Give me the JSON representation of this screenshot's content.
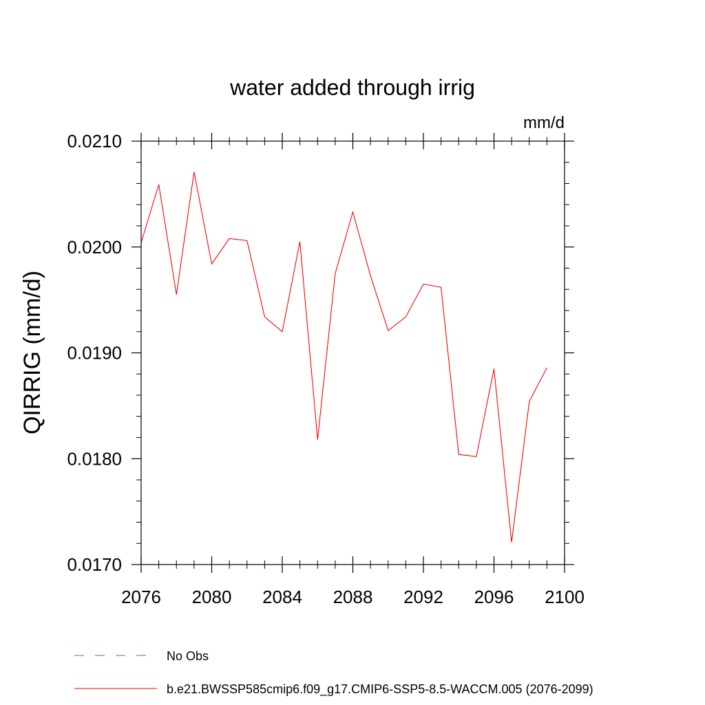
{
  "chart_data": {
    "type": "line",
    "title": "water added through irrig",
    "units": "mm/d",
    "ylabel": "QIRRIG  (mm/d)",
    "xlabel": "",
    "xlim": [
      2076,
      2100
    ],
    "ylim": [
      0.017,
      0.021
    ],
    "x_ticks": [
      2076,
      2080,
      2084,
      2088,
      2092,
      2096,
      2100
    ],
    "x_tick_labels": [
      "2076",
      "2080",
      "2084",
      "2088",
      "2092",
      "2096",
      "2100"
    ],
    "y_ticks": [
      0.017,
      0.018,
      0.019,
      0.02,
      0.021
    ],
    "y_tick_labels": [
      "0.0170",
      "0.0180",
      "0.0190",
      "0.0200",
      "0.0210"
    ],
    "grid": false,
    "legend_position": "bottom",
    "series": [
      {
        "name": "No Obs",
        "style": "dashed",
        "color": "#6a5acd",
        "x": [],
        "values": []
      },
      {
        "name": "b.e21.BWSSP585cmip6.f09_g17.CMIP6-SSP5-8.5-WACCM.005 (2076-2099)",
        "style": "solid",
        "color": "#ff0000",
        "x": [
          2076,
          2077,
          2078,
          2079,
          2080,
          2081,
          2082,
          2083,
          2084,
          2085,
          2086,
          2087,
          2088,
          2089,
          2090,
          2091,
          2092,
          2093,
          2094,
          2095,
          2096,
          2097,
          2098,
          2099
        ],
        "values": [
          0.02004,
          0.02059,
          0.01955,
          0.02071,
          0.01984,
          0.02008,
          0.02006,
          0.01934,
          0.0192,
          0.02005,
          0.01818,
          0.01975,
          0.02033,
          0.01973,
          0.01921,
          0.01934,
          0.01965,
          0.01962,
          0.01804,
          0.01802,
          0.01885,
          0.01721,
          0.01854,
          0.01886
        ]
      }
    ]
  }
}
